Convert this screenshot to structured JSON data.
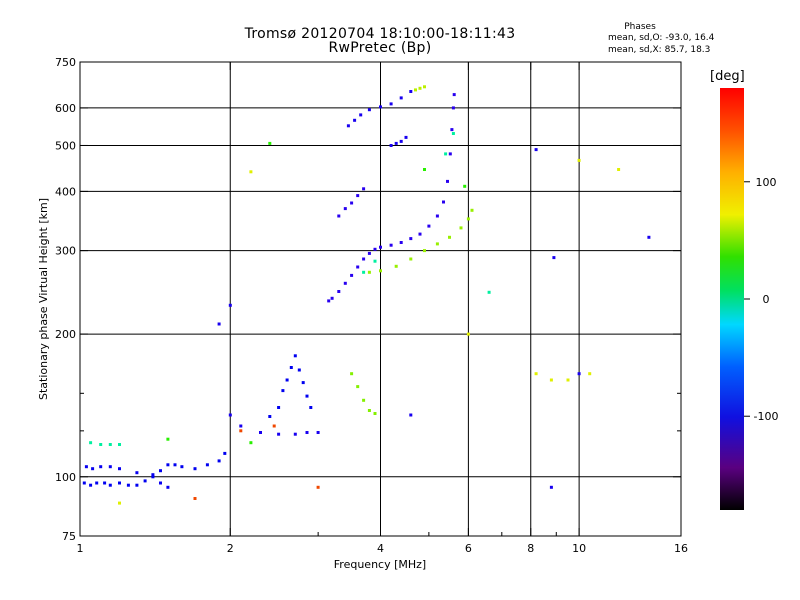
{
  "chart_data": {
    "type": "scatter",
    "title": "Tromsø 20120704 18:10:00-18:11:43",
    "subtitle": "RwPretec (Bp)",
    "xlabel": "Frequency [MHz]",
    "ylabel": "Stationary phase Virtual Height [km]",
    "x_scale": "log",
    "y_scale": "log",
    "xlim": [
      1,
      16
    ],
    "ylim": [
      75,
      750
    ],
    "x_ticks": [
      1,
      2,
      4,
      6,
      8,
      10,
      16
    ],
    "x_tick_labels": [
      "1",
      "2",
      "4",
      "6",
      "8",
      "10",
      "16"
    ],
    "x_minor_ticks": [
      3,
      5,
      7,
      9
    ],
    "y_ticks": [
      75,
      100,
      200,
      300,
      400,
      500,
      600,
      750
    ],
    "y_tick_labels": [
      "75",
      "100",
      "200",
      "300",
      "400",
      "500",
      "600",
      "750"
    ],
    "y_minor_ticks": [
      125,
      150
    ],
    "grid": true,
    "grid_x": [
      2,
      4,
      6,
      8,
      10
    ],
    "grid_y": [
      100,
      200,
      300,
      400,
      500,
      600
    ],
    "color_scale": {
      "label": "[deg]",
      "range": [
        -180,
        180
      ],
      "ticks": [
        100,
        0,
        -100
      ],
      "tick_labels": [
        "100",
        "0",
        "-100"
      ]
    },
    "stats": {
      "heading": "Phases",
      "o_label": "mean, sd,O:",
      "o_values": "-93.0, 16.4",
      "x_label": "mean, sd,X:",
      "x_values": "85.7, 18.3"
    },
    "series": [
      {
        "phase": -95,
        "points": [
          [
            1.02,
            97
          ],
          [
            1.05,
            96
          ],
          [
            1.08,
            97
          ],
          [
            1.12,
            97
          ],
          [
            1.15,
            96
          ],
          [
            1.2,
            97
          ],
          [
            1.25,
            96
          ],
          [
            1.3,
            96
          ],
          [
            1.35,
            98
          ],
          [
            1.4,
            100
          ],
          [
            1.45,
            103
          ],
          [
            1.5,
            106
          ],
          [
            1.55,
            106
          ],
          [
            1.6,
            105
          ],
          [
            1.7,
            104
          ],
          [
            1.8,
            106
          ],
          [
            1.9,
            108
          ],
          [
            1.95,
            112
          ]
        ]
      },
      {
        "phase": -100,
        "points": [
          [
            1.03,
            105
          ],
          [
            1.06,
            104
          ],
          [
            1.1,
            105
          ],
          [
            1.15,
            105
          ],
          [
            1.2,
            104
          ],
          [
            1.3,
            102
          ],
          [
            1.4,
            101
          ],
          [
            1.45,
            97
          ],
          [
            1.5,
            95
          ]
        ]
      },
      {
        "phase": -110,
        "points": [
          [
            2.0,
            135
          ],
          [
            2.1,
            128
          ],
          [
            2.3,
            124
          ],
          [
            2.5,
            123
          ],
          [
            2.7,
            123
          ],
          [
            2.85,
            124
          ],
          [
            3.0,
            124
          ]
        ]
      },
      {
        "phase": -95,
        "points": [
          [
            2.4,
            134
          ],
          [
            2.5,
            140
          ],
          [
            2.55,
            152
          ],
          [
            2.6,
            160
          ],
          [
            2.65,
            170
          ],
          [
            2.7,
            180
          ],
          [
            2.75,
            168
          ],
          [
            2.8,
            158
          ],
          [
            2.85,
            148
          ],
          [
            2.9,
            140
          ]
        ]
      },
      {
        "phase": -120,
        "points": [
          [
            3.15,
            235
          ],
          [
            3.2,
            238
          ],
          [
            3.3,
            246
          ],
          [
            3.4,
            256
          ],
          [
            3.5,
            266
          ],
          [
            3.6,
            277
          ],
          [
            3.7,
            288
          ],
          [
            3.8,
            296
          ],
          [
            3.9,
            302
          ],
          [
            4.0,
            305
          ],
          [
            4.2,
            308
          ],
          [
            4.4,
            312
          ],
          [
            4.6,
            318
          ],
          [
            4.8,
            325
          ],
          [
            5.0,
            338
          ],
          [
            5.2,
            355
          ],
          [
            5.35,
            380
          ],
          [
            5.45,
            420
          ],
          [
            5.52,
            480
          ],
          [
            5.56,
            540
          ],
          [
            5.6,
            600
          ],
          [
            5.62,
            640
          ]
        ]
      },
      {
        "phase": -120,
        "points": [
          [
            3.3,
            355
          ],
          [
            3.4,
            368
          ],
          [
            3.5,
            378
          ],
          [
            3.6,
            392
          ],
          [
            3.7,
            405
          ]
        ]
      },
      {
        "phase": -110,
        "points": [
          [
            3.45,
            550
          ],
          [
            3.55,
            565
          ],
          [
            3.65,
            580
          ],
          [
            3.8,
            595
          ],
          [
            4.0,
            603
          ],
          [
            4.2,
            612
          ],
          [
            4.4,
            630
          ],
          [
            4.6,
            650
          ]
        ]
      },
      {
        "phase": -110,
        "points": [
          [
            4.2,
            500
          ],
          [
            4.3,
            505
          ],
          [
            4.4,
            510
          ],
          [
            4.5,
            520
          ]
        ]
      },
      {
        "phase": 90,
        "points": [
          [
            3.8,
            270
          ],
          [
            4.0,
            272
          ],
          [
            4.3,
            278
          ],
          [
            4.6,
            288
          ],
          [
            4.9,
            300
          ],
          [
            5.2,
            310
          ],
          [
            5.5,
            320
          ],
          [
            5.8,
            335
          ],
          [
            6.0,
            350
          ],
          [
            6.1,
            365
          ]
        ]
      },
      {
        "phase": 85,
        "points": [
          [
            3.5,
            165
          ],
          [
            3.6,
            155
          ],
          [
            3.7,
            145
          ],
          [
            3.8,
            138
          ],
          [
            3.9,
            136
          ]
        ]
      },
      {
        "phase": 100,
        "points": [
          [
            4.7,
            655
          ],
          [
            4.8,
            660
          ],
          [
            4.9,
            665
          ]
        ]
      },
      {
        "phase": 5,
        "points": [
          [
            1.05,
            118
          ],
          [
            1.1,
            117
          ],
          [
            1.15,
            117
          ],
          [
            1.2,
            117
          ],
          [
            3.7,
            270
          ],
          [
            3.9,
            285
          ],
          [
            5.4,
            480
          ],
          [
            5.6,
            530
          ],
          [
            6.6,
            245
          ]
        ]
      },
      {
        "phase": 60,
        "points": [
          [
            1.5,
            120
          ],
          [
            2.2,
            118
          ],
          [
            2.4,
            505
          ],
          [
            4.9,
            445
          ],
          [
            5.9,
            410
          ]
        ]
      },
      {
        "phase": 110,
        "points": [
          [
            2.2,
            440
          ],
          [
            10.0,
            465
          ],
          [
            12.0,
            445
          ],
          [
            6.0,
            200
          ],
          [
            8.2,
            165
          ],
          [
            8.8,
            160
          ],
          [
            9.5,
            160
          ],
          [
            10.5,
            165
          ],
          [
            1.2,
            88
          ]
        ]
      },
      {
        "phase": 160,
        "points": [
          [
            2.1,
            125
          ],
          [
            2.45,
            128
          ],
          [
            3.0,
            95
          ],
          [
            1.7,
            90
          ]
        ]
      },
      {
        "phase": -110,
        "points": [
          [
            8.2,
            490
          ],
          [
            8.9,
            290
          ],
          [
            13.8,
            320
          ],
          [
            8.8,
            95
          ],
          [
            10.0,
            165
          ],
          [
            4.6,
            135
          ],
          [
            1.9,
            210
          ],
          [
            2.0,
            230
          ]
        ]
      }
    ]
  }
}
